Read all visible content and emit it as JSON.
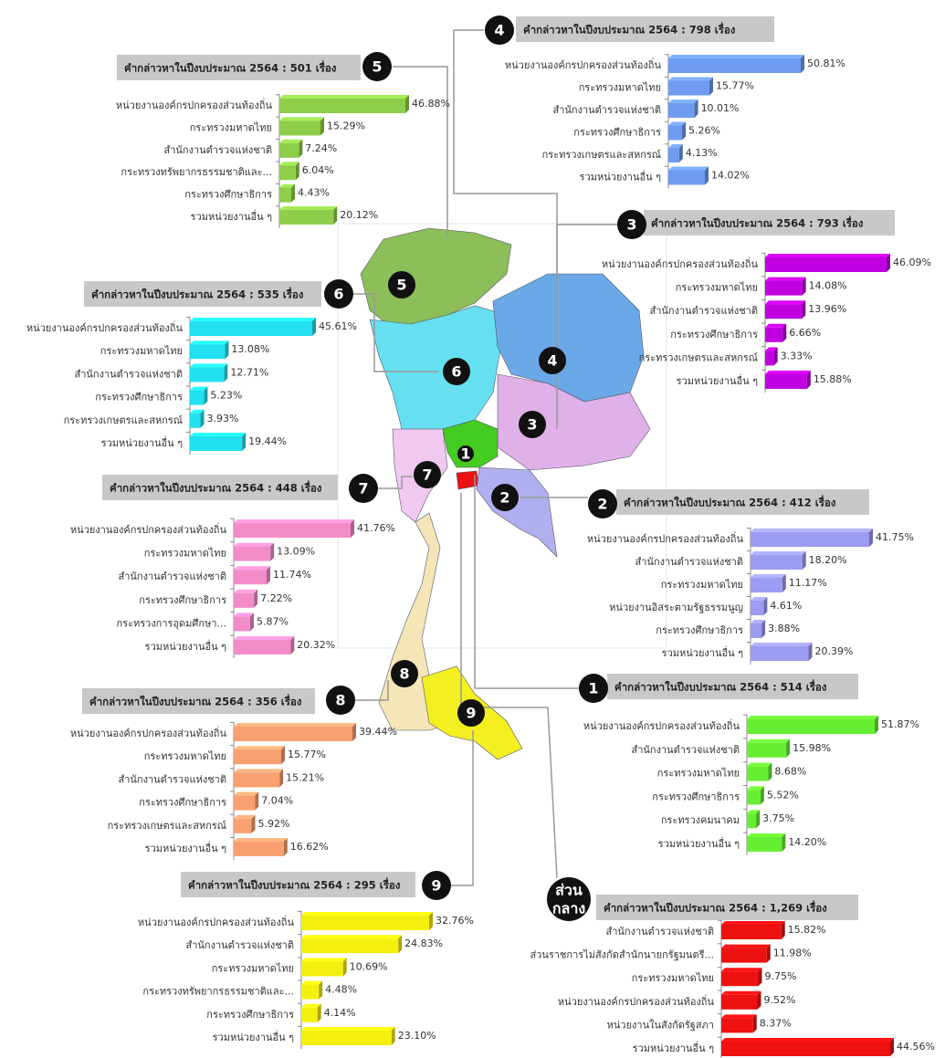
{
  "chart_data": [
    {
      "type": "bar",
      "title": "คำกล่าวหาในปีงบประมาณ 2564 : 514 เรื่อง",
      "badge": "1",
      "color": "#66ee33",
      "categories": [
        "หน่วยงานองค์กรปกครองส่วนท้องถิ่น",
        "สำนักงานตำรวจแห่งชาติ",
        "กระทรวงมหาดไทย",
        "กระทรวงศึกษาธิการ",
        "กระทรวงคมนาคม",
        "รวมหน่วยงานอื่น ๆ"
      ],
      "values": [
        51.87,
        15.98,
        8.68,
        5.52,
        3.75,
        14.2
      ],
      "value_labels": [
        "51.87%",
        "15.98%",
        "8.68%",
        "5.52%",
        "3.75%",
        "14.20%"
      ]
    },
    {
      "type": "bar",
      "title": "คำกล่าวหาในปีงบประมาณ 2564 : 412 เรื่อง",
      "badge": "2",
      "color": "#9c9cf2",
      "categories": [
        "หน่วยงานองค์กรปกครองส่วนท้องถิ่น",
        "สำนักงานตำรวจแห่งชาติ",
        "กระทรวงมหาดไทย",
        "หน่วยงานอิสระตามรัฐธรรมนูญ",
        "กระทรวงศึกษาธิการ",
        "รวมหน่วยงานอื่น ๆ"
      ],
      "values": [
        41.75,
        18.2,
        11.17,
        4.61,
        3.88,
        20.39
      ],
      "value_labels": [
        "41.75%",
        "18.20%",
        "11.17%",
        "4.61%",
        "3.88%",
        "20.39%"
      ]
    },
    {
      "type": "bar",
      "title": "คำกล่าวหาในปีงบประมาณ 2564 : 793 เรื่อง",
      "badge": "3",
      "color": "#c000e0",
      "categories": [
        "หน่วยงานองค์กรปกครองส่วนท้องถิ่น",
        "กระทรวงมหาดไทย",
        "สำนักงานตำรวจแห่งชาติ",
        "กระทรวงศึกษาธิการ",
        "กระทรวงเกษตรและสหกรณ์",
        "รวมหน่วยงานอื่น ๆ"
      ],
      "values": [
        46.09,
        14.08,
        13.96,
        6.66,
        3.33,
        15.88
      ],
      "value_labels": [
        "46.09%",
        "14.08%",
        "13.96%",
        "6.66%",
        "3.33%",
        "15.88%"
      ]
    },
    {
      "type": "bar",
      "title": "คำกล่าวหาในปีงบประมาณ 2564 : 798 เรื่อง",
      "badge": "4",
      "color": "#6f9cf0",
      "categories": [
        "หน่วยงานองค์กรปกครองส่วนท้องถิ่น",
        "กระทรวงมหาดไทย",
        "สำนักงานตำรวจแห่งชาติ",
        "กระทรวงศึกษาธิการ",
        "กระทรวงเกษตรและสหกรณ์",
        "รวมหน่วยงานอื่น ๆ"
      ],
      "values": [
        50.81,
        15.77,
        10.01,
        5.26,
        4.13,
        14.02
      ],
      "value_labels": [
        "50.81%",
        "15.77%",
        "10.01%",
        "5.26%",
        "4.13%",
        "14.02%"
      ]
    },
    {
      "type": "bar",
      "title": "คำกล่าวหาในปีงบประมาณ 2564 : 501 เรื่อง",
      "badge": "5",
      "color": "#8fce4a",
      "categories": [
        "หน่วยงานองค์กรปกครองส่วนท้องถิ่น",
        "กระทรวงมหาดไทย",
        "สำนักงานตำรวจแห่งชาติ",
        "กระทรวงทรัพยากรธรรมชาติและ...",
        "กระทรวงศึกษาธิการ",
        "รวมหน่วยงานอื่น ๆ"
      ],
      "values": [
        46.88,
        15.29,
        7.24,
        6.04,
        4.43,
        20.12
      ],
      "value_labels": [
        "46.88%",
        "15.29%",
        "7.24%",
        "6.04%",
        "4.43%",
        "20.12%"
      ]
    },
    {
      "type": "bar",
      "title": "คำกล่าวหาในปีงบประมาณ 2564 : 535 เรื่อง",
      "badge": "6",
      "color": "#22e0f0",
      "categories": [
        "หน่วยงานองค์กรปกครองส่วนท้องถิ่น",
        "กระทรวงมหาดไทย",
        "สำนักงานตำรวจแห่งชาติ",
        "กระทรวงศึกษาธิการ",
        "กระทรวงเกษตรและสหกรณ์",
        "รวมหน่วยงานอื่น ๆ"
      ],
      "values": [
        45.61,
        13.08,
        12.71,
        5.23,
        3.93,
        19.44
      ],
      "value_labels": [
        "45.61%",
        "13.08%",
        "12.71%",
        "5.23%",
        "3.93%",
        "19.44%"
      ]
    },
    {
      "type": "bar",
      "title": "คำกล่าวหาในปีงบประมาณ 2564 : 448 เรื่อง",
      "badge": "7",
      "color": "#f28cc8",
      "categories": [
        "หน่วยงานองค์กรปกครองส่วนท้องถิ่น",
        "กระทรวงมหาดไทย",
        "สำนักงานตำรวจแห่งชาติ",
        "กระทรวงศึกษาธิการ",
        "กระทรวงการอุดมศึกษา...",
        "รวมหน่วยงานอื่น ๆ"
      ],
      "values": [
        41.76,
        13.09,
        11.74,
        7.22,
        5.87,
        20.32
      ],
      "value_labels": [
        "41.76%",
        "13.09%",
        "11.74%",
        "7.22%",
        "5.87%",
        "20.32%"
      ]
    },
    {
      "type": "bar",
      "title": "คำกล่าวหาในปีงบประมาณ 2564 : 356 เรื่อง",
      "badge": "8",
      "color": "#f8a070",
      "categories": [
        "หน่วยงานองค์กรปกครองส่วนท้องถิ่น",
        "กระทรวงมหาดไทย",
        "สำนักงานตำรวจแห่งชาติ",
        "กระทรวงศึกษาธิการ",
        "กระทรวงเกษตรและสหกรณ์",
        "รวมหน่วยงานอื่น ๆ"
      ],
      "values": [
        39.44,
        15.77,
        15.21,
        7.04,
        5.92,
        16.62
      ],
      "value_labels": [
        "39.44%",
        "15.77%",
        "15.21%",
        "7.04%",
        "5.92%",
        "16.62%"
      ]
    },
    {
      "type": "bar",
      "title": "คำกล่าวหาในปีงบประมาณ 2564 : 295 เรื่อง",
      "badge": "9",
      "color": "#f5ef10",
      "categories": [
        "หน่วยงานองค์กรปกครองส่วนท้องถิ่น",
        "สำนักงานตำรวจแห่งชาติ",
        "กระทรวงมหาดไทย",
        "กระทรวงทรัพยากรธรรมชาติและ...",
        "กระทรวงศึกษาธิการ",
        "รวมหน่วยงานอื่น ๆ"
      ],
      "values": [
        32.76,
        24.83,
        10.69,
        4.48,
        4.14,
        23.1
      ],
      "value_labels": [
        "32.76%",
        "24.83%",
        "10.69%",
        "4.48%",
        "4.14%",
        "23.10%"
      ]
    },
    {
      "type": "bar",
      "title": "คำกล่าวหาในปีงบประมาณ 2564 : 1,269 เรื่อง",
      "badge_lines": [
        "ส่วน",
        "กลาง"
      ],
      "color": "#ee1111",
      "categories": [
        "สำนักงานตำรวจแห่งชาติ",
        "ส่วนราชการไม่สังกัดสำนักนายกรัฐมนตรี...",
        "กระทรวงมหาดไทย",
        "หน่วยงานองค์กรปกครองส่วนท้องถิ่น",
        "หน่วยงานในสังกัดรัฐสภา",
        "รวมหน่วยงานอื่น ๆ"
      ],
      "values": [
        15.82,
        11.98,
        9.75,
        9.52,
        8.37,
        44.56
      ],
      "value_labels": [
        "15.82%",
        "11.98%",
        "9.75%",
        "9.52%",
        "8.37%",
        "44.56%"
      ]
    }
  ],
  "map_labels": [
    "5",
    "6",
    "4",
    "3",
    "1",
    "7",
    "2",
    "8",
    "9"
  ]
}
